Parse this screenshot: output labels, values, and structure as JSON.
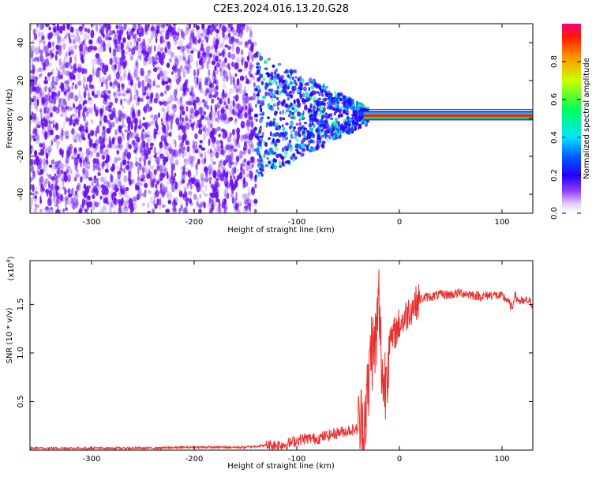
{
  "title": "C2E3.2024.016.13.20.G28",
  "colors": {
    "snr_line": "#e8312f",
    "noise_dot": "#6a11f2",
    "frame": "#000000"
  },
  "chart_data": [
    {
      "type": "heatmap",
      "name": "spectrogram",
      "xlabel": "Height of straight line (km)",
      "ylabel": "Frequency (Hz)",
      "xlim": [
        -360,
        130
      ],
      "ylim": [
        -50,
        50
      ],
      "x_ticks": [
        {
          "value": -300,
          "label": "-300"
        },
        {
          "value": -200,
          "label": "-200"
        },
        {
          "value": -100,
          "label": "-100"
        },
        {
          "value": 0,
          "label": "0"
        },
        {
          "value": 100,
          "label": "100"
        }
      ],
      "y_ticks": [
        {
          "value": -40,
          "label": "-40"
        },
        {
          "value": -20,
          "label": "-20"
        },
        {
          "value": 0,
          "label": "0"
        },
        {
          "value": 20,
          "label": "20"
        },
        {
          "value": 40,
          "label": "40"
        }
      ],
      "signal_band_center_hz": 1.5,
      "noise_extent_km": -140,
      "colorbar": {
        "label": "Normalized spectral amplitude",
        "range": [
          0,
          1
        ],
        "ticks": [
          {
            "value": 0.0,
            "label": "0.0"
          },
          {
            "value": 0.2,
            "label": "0.2"
          },
          {
            "value": 0.4,
            "label": "0.4"
          },
          {
            "value": 0.6,
            "label": "0.6"
          },
          {
            "value": 0.8,
            "label": "0.8"
          }
        ]
      }
    },
    {
      "type": "line",
      "name": "snr",
      "xlabel": "Height of straight line (km)",
      "ylabel": "SNR (10 * v/v)",
      "scale_label": "(x10",
      "scale_exp": "4",
      "scale_close": ")",
      "xlim": [
        -360,
        130
      ],
      "ylim": [
        0,
        1.95
      ],
      "x_ticks": [
        {
          "value": -300,
          "label": "-300"
        },
        {
          "value": -200,
          "label": "-200"
        },
        {
          "value": -100,
          "label": "-100"
        },
        {
          "value": 0,
          "label": "0"
        },
        {
          "value": 100,
          "label": "100"
        }
      ],
      "y_ticks": [
        {
          "value": 0.5,
          "label": "0.5"
        },
        {
          "value": 1.0,
          "label": "1.0"
        },
        {
          "value": 1.5,
          "label": "1.5"
        }
      ],
      "series": [
        {
          "name": "SNR",
          "x": [
            -360,
            -300,
            -250,
            -200,
            -150,
            -130,
            -110,
            -100,
            -90,
            -80,
            -70,
            -60,
            -50,
            -40,
            -35,
            -30,
            -28,
            -25,
            -22,
            -20,
            -18,
            -15,
            -12,
            -10,
            -8,
            -5,
            -2,
            0,
            5,
            10,
            15,
            20,
            25,
            30,
            40,
            50,
            60,
            70,
            80,
            90,
            100,
            105,
            110,
            112,
            115,
            120,
            125,
            130
          ],
          "y": [
            0.02,
            0.02,
            0.02,
            0.03,
            0.03,
            0.05,
            0.06,
            0.1,
            0.12,
            0.12,
            0.15,
            0.18,
            0.2,
            0.22,
            0.3,
            0.6,
            1.1,
            1.0,
            1.2,
            1.55,
            1.0,
            0.6,
            0.9,
            1.15,
            1.1,
            1.2,
            1.25,
            1.3,
            1.35,
            1.45,
            1.5,
            1.55,
            1.57,
            1.58,
            1.6,
            1.6,
            1.62,
            1.6,
            1.58,
            1.6,
            1.58,
            1.55,
            1.45,
            1.6,
            1.55,
            1.52,
            1.54,
            1.5
          ]
        }
      ]
    }
  ]
}
